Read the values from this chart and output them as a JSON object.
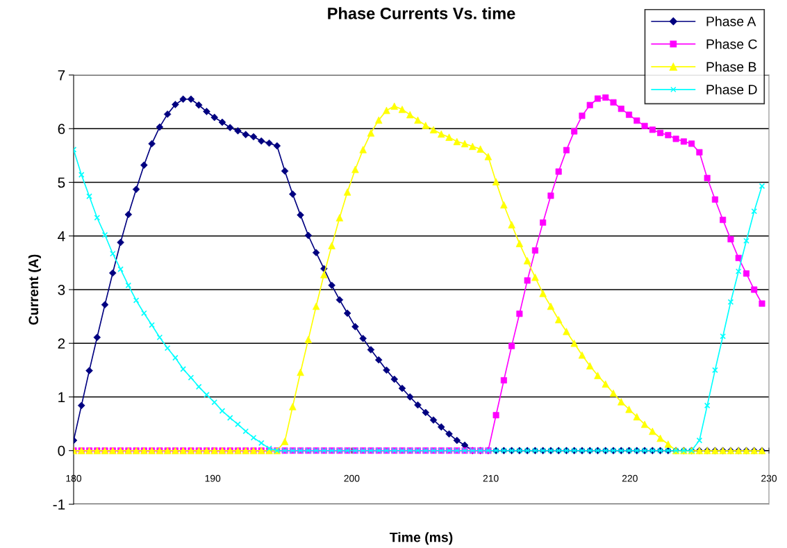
{
  "chart_data": {
    "type": "line",
    "title": "Phase Currents Vs. time",
    "xlabel": "Time (ms)",
    "ylabel": "Current (A)",
    "x": [
      180,
      180.5625,
      181.125,
      181.6875,
      182.25,
      182.8125,
      183.375,
      183.9375,
      184.5,
      185.0625,
      185.625,
      186.1875,
      186.75,
      187.3125,
      187.875,
      188.4375,
      189,
      189.5625,
      190.125,
      190.6875,
      191.25,
      191.8125,
      192.375,
      192.9375,
      193.5,
      194.0625,
      194.625,
      195.1875,
      195.75,
      196.3125,
      196.875,
      197.4375,
      198,
      198.5625,
      199.125,
      199.6875,
      200.25,
      200.8125,
      201.375,
      201.9375,
      202.5,
      203.0625,
      203.625,
      204.1875,
      204.75,
      205.3125,
      205.875,
      206.4375,
      207,
      207.5625,
      208.125,
      208.6875,
      209.25,
      209.8125,
      210.375,
      210.9375,
      211.5,
      212.0625,
      212.625,
      213.1875,
      213.75,
      214.3125,
      214.875,
      215.4375,
      216,
      216.5625,
      217.125,
      217.6875,
      218.25,
      218.8125,
      219.375,
      219.9375,
      220.5,
      221.0625,
      221.625,
      222.1875,
      222.75,
      223.3125,
      223.875,
      224.4375,
      225,
      225.5625,
      226.125,
      226.6875,
      227.25,
      227.8125,
      228.375,
      228.9375,
      229.5
    ],
    "series": [
      {
        "name": "Phase A",
        "color": "#000080",
        "marker": "diamond",
        "values": [
          0.19,
          0.84,
          1.49,
          2.11,
          2.72,
          3.31,
          3.88,
          4.4,
          4.87,
          5.32,
          5.72,
          6.03,
          6.27,
          6.45,
          6.55,
          6.55,
          6.44,
          6.32,
          6.21,
          6.12,
          6.02,
          5.96,
          5.89,
          5.85,
          5.77,
          5.73,
          5.68,
          5.21,
          4.78,
          4.39,
          4.01,
          3.69,
          3.39,
          3.08,
          2.81,
          2.56,
          2.31,
          2.09,
          1.88,
          1.69,
          1.5,
          1.33,
          1.16,
          1.0,
          0.85,
          0.71,
          0.57,
          0.44,
          0.31,
          0.19,
          0.1,
          0,
          0,
          0,
          0,
          0,
          0,
          0,
          0,
          0,
          0,
          0,
          0,
          0,
          0,
          0,
          0,
          0,
          0,
          0,
          0,
          0,
          0,
          0,
          0,
          0,
          0,
          0,
          0,
          0,
          0,
          0,
          0,
          0,
          0,
          0,
          0,
          0,
          0
        ]
      },
      {
        "name": "Phase C",
        "color": "#ff00ff",
        "marker": "square",
        "values": [
          0,
          0,
          0,
          0,
          0,
          0,
          0,
          0,
          0,
          0,
          0,
          0,
          0,
          0,
          0,
          0,
          0,
          0,
          0,
          0,
          0,
          0,
          0,
          0,
          0,
          0,
          0,
          0,
          0,
          0,
          0,
          0,
          0,
          0,
          0,
          0,
          0,
          0,
          0,
          0,
          0,
          0,
          0,
          0,
          0,
          0,
          0,
          0,
          0,
          0,
          0,
          0,
          0,
          0,
          0.66,
          1.31,
          1.95,
          2.55,
          3.17,
          3.73,
          4.25,
          4.75,
          5.2,
          5.6,
          5.95,
          6.24,
          6.44,
          6.56,
          6.58,
          6.49,
          6.37,
          6.26,
          6.15,
          6.05,
          5.98,
          5.92,
          5.88,
          5.81,
          5.76,
          5.72,
          5.56,
          5.08,
          4.68,
          4.3,
          3.94,
          3.59,
          3.3,
          3.0,
          2.74
        ]
      },
      {
        "name": "Phase B",
        "color": "#ffff00",
        "marker": "triangle",
        "values": [
          0,
          0,
          0,
          0,
          0,
          0,
          0,
          0,
          0,
          0,
          0,
          0,
          0,
          0,
          0,
          0,
          0,
          0,
          0,
          0,
          0,
          0,
          0,
          0,
          0,
          0,
          0,
          0.17,
          0.82,
          1.46,
          2.07,
          2.69,
          3.28,
          3.82,
          4.34,
          4.82,
          5.24,
          5.61,
          5.92,
          6.16,
          6.34,
          6.42,
          6.36,
          6.26,
          6.16,
          6.06,
          5.98,
          5.9,
          5.84,
          5.76,
          5.72,
          5.67,
          5.62,
          5.48,
          5.01,
          4.58,
          4.21,
          3.86,
          3.54,
          3.23,
          2.93,
          2.69,
          2.44,
          2.22,
          2.0,
          1.78,
          1.58,
          1.4,
          1.24,
          1.07,
          0.91,
          0.77,
          0.63,
          0.49,
          0.36,
          0.23,
          0.12,
          0,
          0,
          0,
          0,
          0,
          0,
          0,
          0,
          0,
          0,
          0,
          0
        ]
      },
      {
        "name": "Phase D",
        "color": "#00ffff",
        "marker": "cross",
        "values": [
          5.61,
          5.14,
          4.74,
          4.34,
          4.02,
          3.67,
          3.38,
          3.08,
          2.8,
          2.56,
          2.34,
          2.11,
          1.91,
          1.73,
          1.52,
          1.36,
          1.19,
          1.04,
          0.9,
          0.74,
          0.61,
          0.49,
          0.36,
          0.24,
          0.14,
          0.04,
          0,
          0,
          0,
          0,
          0,
          0,
          0,
          0,
          0,
          0,
          0,
          0,
          0,
          0,
          0,
          0,
          0,
          0,
          0,
          0,
          0,
          0,
          0,
          0,
          0,
          0,
          0,
          0,
          0,
          0,
          0,
          0,
          0,
          0,
          0,
          0,
          0,
          0,
          0,
          0,
          0,
          0,
          0,
          0,
          0,
          0,
          0,
          0,
          0,
          0,
          0,
          0,
          0,
          0,
          0.19,
          0.84,
          1.5,
          2.13,
          2.77,
          3.34,
          3.91,
          4.46,
          4.93
        ]
      }
    ],
    "xlim": [
      180,
      230
    ],
    "xticks": [
      180,
      190,
      200,
      210,
      220,
      230
    ],
    "ylim": [
      -1,
      7
    ],
    "yticks": [
      -1,
      0,
      1,
      2,
      3,
      4,
      5,
      6,
      7
    ],
    "grid": "y",
    "legend": "top right",
    "line_style": "solid"
  }
}
